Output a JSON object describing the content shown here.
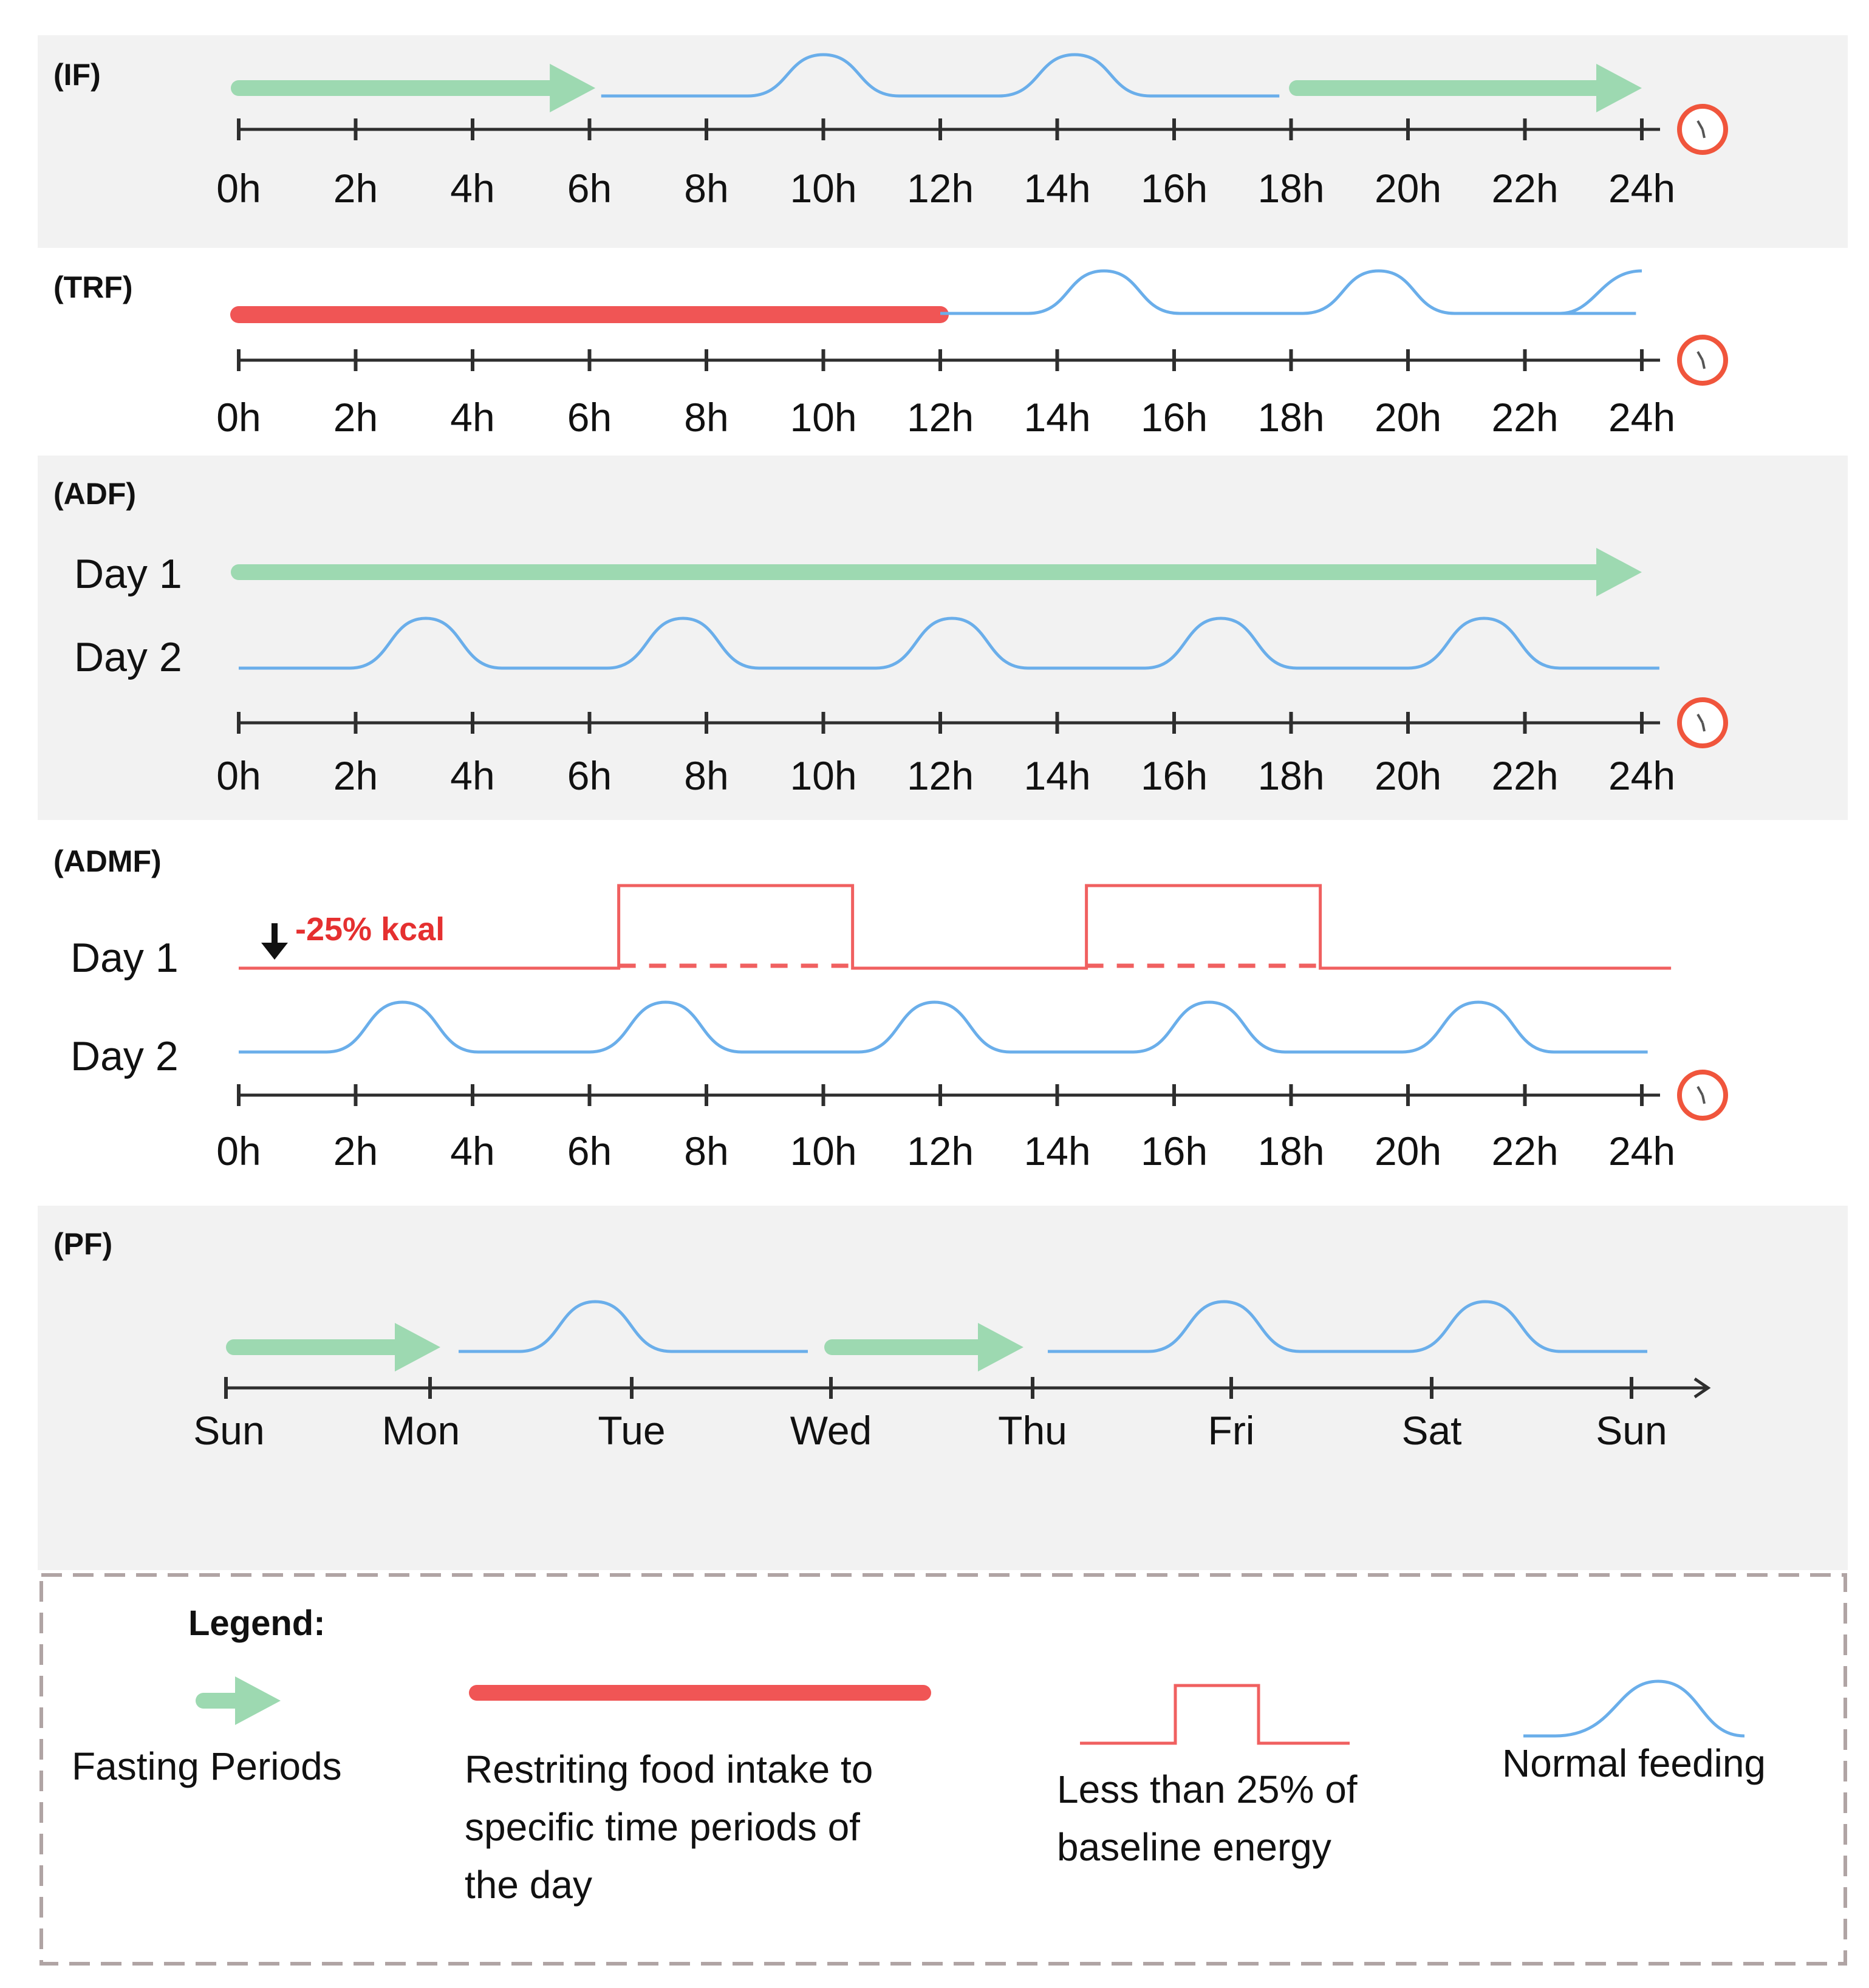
{
  "colors": {
    "fasting": "#9dd9b1",
    "restriction": "#f05555",
    "low_energy": "#f06060",
    "normal": "#6aaeea",
    "axis": "#2e2e2e",
    "clock": "#f0553c",
    "legend_border": "#b0a4a4"
  },
  "hour_ticks": [
    "0h",
    "2h",
    "4h",
    "6h",
    "8h",
    "10h",
    "12h",
    "14h",
    "16h",
    "18h",
    "20h",
    "22h",
    "24h"
  ],
  "day_ticks": [
    "Sun",
    "Mon",
    "Tue",
    "Wed",
    "Thu",
    "Fri",
    "Sat",
    "Sun"
  ],
  "panels": {
    "if": {
      "label": "(IF)"
    },
    "trf": {
      "label": "(TRF)"
    },
    "adf": {
      "label": "(ADF)",
      "row1": "Day 1",
      "row2": "Day 2"
    },
    "admf": {
      "label": "(ADMF)",
      "row1": "Day 1",
      "row2": "Day 2",
      "kcal_note": "-25% kcal",
      "kcal_arrow": "arrow-down-icon"
    },
    "pf": {
      "label": "(PF)"
    }
  },
  "legend": {
    "title": "Legend:",
    "fasting": "Fasting Periods",
    "restriction": [
      "Restriting food intake to",
      "specific time periods of",
      "the day"
    ],
    "low_energy": [
      "Less than 25% of",
      "baseline energy"
    ],
    "normal": "Normal feeding"
  },
  "icons": {
    "clock": "clock-icon",
    "fasting_arrow": "arrow-right-icon",
    "axis_end": "axis-arrow-icon"
  }
}
